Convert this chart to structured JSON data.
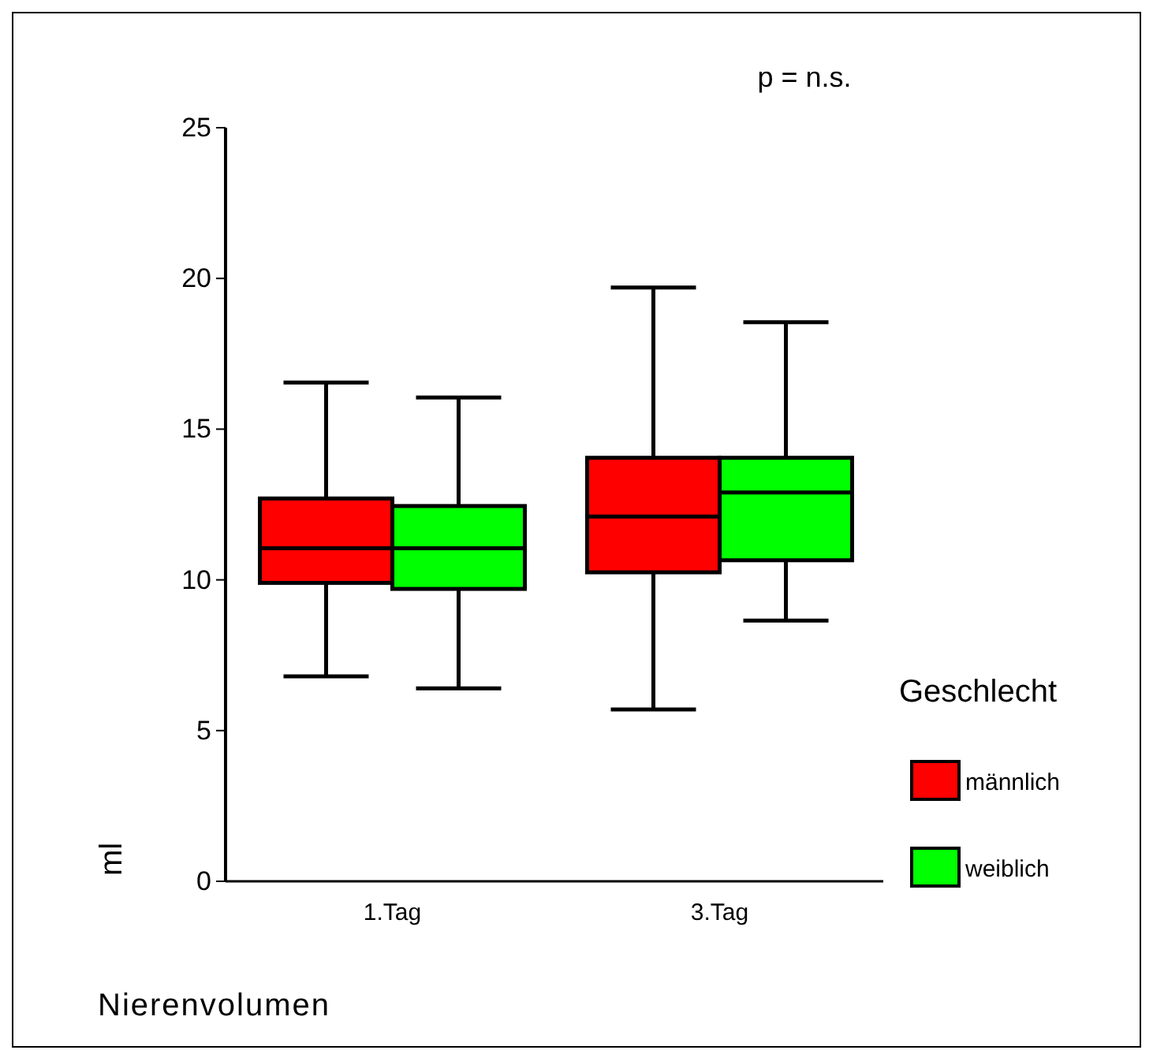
{
  "chart_data": {
    "type": "box",
    "xlabel": "Nierenvolumen",
    "ylabel": "ml",
    "legend_title": "Geschlecht",
    "annotations": [
      "p = n.s."
    ],
    "categories": [
      "1.Tag",
      "3.Tag"
    ],
    "ylim": [
      0,
      25
    ],
    "yticks": [
      0,
      5,
      10,
      15,
      20,
      25
    ],
    "legend": "right",
    "grid": false,
    "series": [
      {
        "name": "männlich",
        "color": "#ff0000",
        "boxes": [
          {
            "low": 6.8,
            "q1": 9.9,
            "median": 11.05,
            "q3": 12.7,
            "high": 16.55
          },
          {
            "low": 5.7,
            "q1": 10.25,
            "median": 12.1,
            "q3": 14.05,
            "high": 19.7
          }
        ]
      },
      {
        "name": "weiblich",
        "color": "#00ff00",
        "boxes": [
          {
            "low": 6.4,
            "q1": 9.7,
            "median": 11.05,
            "q3": 12.45,
            "high": 16.05
          },
          {
            "low": 8.65,
            "q1": 10.65,
            "median": 12.9,
            "q3": 14.05,
            "high": 18.55
          }
        ]
      }
    ]
  }
}
